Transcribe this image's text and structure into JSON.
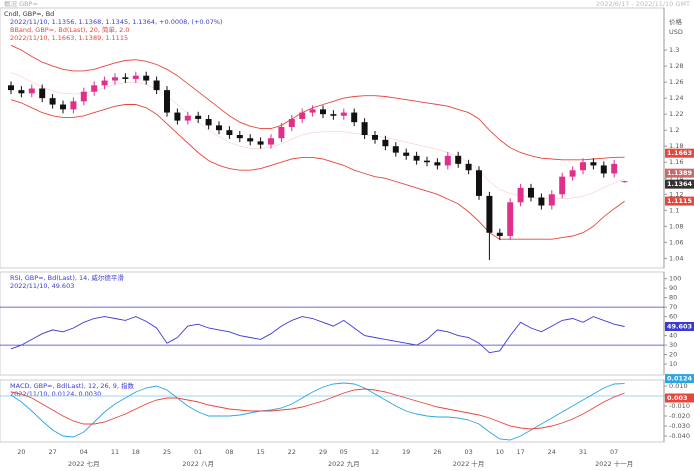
{
  "header": {
    "title_left": "概况 GBP=",
    "range_right": "2022/6/17 - 2022/11/10 GMT"
  },
  "chart_data": [
    {
      "type": "candlestick",
      "name": "Cndl, GBP=, Bd",
      "readout": "2022/11/10, 1.1356, 1.1368, 1.1345, 1.1364, +0.0008, (+0.07%)",
      "axis_title": "价格",
      "currency": "USD",
      "categories": [
        null,
        "20",
        null,
        null,
        "27",
        null,
        null,
        "04",
        null,
        null,
        "11",
        null,
        "18",
        null,
        null,
        "25",
        null,
        null,
        "01",
        null,
        null,
        "08",
        null,
        null,
        "15",
        null,
        null,
        "22",
        null,
        null,
        "29",
        null,
        "05",
        null,
        null,
        "12",
        null,
        null,
        "19",
        null,
        null,
        "26",
        null,
        null,
        "03",
        null,
        null,
        "10",
        null,
        "17",
        null,
        null,
        "24",
        null,
        null,
        "31",
        null,
        null,
        "07",
        null
      ],
      "month_labels": [
        null,
        null,
        null,
        null,
        null,
        null,
        null,
        "2022 七月",
        null,
        null,
        null,
        null,
        null,
        null,
        null,
        null,
        null,
        null,
        "2022 八月",
        null,
        null,
        null,
        null,
        null,
        null,
        null,
        null,
        null,
        null,
        null,
        null,
        null,
        "2022 九月",
        null,
        null,
        null,
        null,
        null,
        null,
        null,
        null,
        null,
        null,
        null,
        "2022 十月",
        null,
        null,
        null,
        null,
        null,
        null,
        null,
        null,
        null,
        null,
        null,
        null,
        null,
        "2022 十一月",
        null
      ],
      "open": [
        1.256,
        1.25,
        1.246,
        1.252,
        1.24,
        1.232,
        1.226,
        1.236,
        1.248,
        1.256,
        1.262,
        1.266,
        1.264,
        1.268,
        1.262,
        1.25,
        1.222,
        1.212,
        1.218,
        1.214,
        1.206,
        1.2,
        1.194,
        1.19,
        1.186,
        1.182,
        1.19,
        1.204,
        1.214,
        1.222,
        1.226,
        1.22,
        1.218,
        1.222,
        1.21,
        1.194,
        1.188,
        1.18,
        1.172,
        1.168,
        1.162,
        1.16,
        1.156,
        1.168,
        1.158,
        1.15,
        1.118,
        1.072,
        1.068,
        1.11,
        1.128,
        1.116,
        1.106,
        1.12,
        1.142,
        1.15,
        1.16,
        1.156,
        1.146,
        1.1356
      ],
      "high": [
        1.261,
        1.255,
        1.257,
        1.257,
        1.245,
        1.237,
        1.241,
        1.253,
        1.261,
        1.267,
        1.271,
        1.271,
        1.273,
        1.273,
        1.267,
        1.255,
        1.227,
        1.223,
        1.223,
        1.219,
        1.211,
        1.205,
        1.199,
        1.195,
        1.191,
        1.195,
        1.209,
        1.219,
        1.227,
        1.231,
        1.231,
        1.225,
        1.227,
        1.227,
        1.215,
        1.199,
        1.193,
        1.185,
        1.177,
        1.173,
        1.167,
        1.165,
        1.173,
        1.173,
        1.163,
        1.155,
        1.123,
        1.077,
        1.115,
        1.133,
        1.133,
        1.121,
        1.125,
        1.147,
        1.155,
        1.165,
        1.165,
        1.161,
        1.163,
        1.1368
      ],
      "low": [
        1.245,
        1.241,
        1.241,
        1.235,
        1.227,
        1.221,
        1.221,
        1.231,
        1.243,
        1.251,
        1.257,
        1.259,
        1.259,
        1.257,
        1.245,
        1.217,
        1.207,
        1.207,
        1.209,
        1.201,
        1.195,
        1.189,
        1.185,
        1.181,
        1.177,
        1.177,
        1.185,
        1.199,
        1.209,
        1.217,
        1.215,
        1.213,
        1.213,
        1.205,
        1.189,
        1.183,
        1.175,
        1.167,
        1.163,
        1.157,
        1.155,
        1.151,
        1.151,
        1.153,
        1.145,
        1.113,
        1.038,
        1.063,
        1.063,
        1.105,
        1.111,
        1.101,
        1.101,
        1.115,
        1.137,
        1.145,
        1.151,
        1.141,
        1.141,
        1.1345
      ],
      "close": [
        1.25,
        1.246,
        1.252,
        1.24,
        1.232,
        1.226,
        1.236,
        1.248,
        1.256,
        1.262,
        1.266,
        1.264,
        1.268,
        1.262,
        1.25,
        1.222,
        1.212,
        1.218,
        1.214,
        1.206,
        1.2,
        1.194,
        1.19,
        1.186,
        1.182,
        1.19,
        1.204,
        1.214,
        1.222,
        1.226,
        1.22,
        1.218,
        1.222,
        1.21,
        1.194,
        1.188,
        1.18,
        1.172,
        1.168,
        1.162,
        1.16,
        1.156,
        1.168,
        1.158,
        1.15,
        1.118,
        1.072,
        1.068,
        1.11,
        1.128,
        1.116,
        1.106,
        1.12,
        1.142,
        1.15,
        1.16,
        1.156,
        1.146,
        1.158,
        1.1364
      ],
      "up_color": "#e0308c",
      "down_color": "#111111",
      "last_color": "#333333",
      "overlay": {
        "name": "BBand, GBP=, Bd(Last), 20, 简单, 2.0",
        "readout": "2022/11/10, 1.1663, 1.1389, 1.1115",
        "color": "#e8453c",
        "upper": [
          1.306,
          1.3,
          1.292,
          1.285,
          1.28,
          1.276,
          1.274,
          1.274,
          1.276,
          1.28,
          1.284,
          1.287,
          1.288,
          1.286,
          1.282,
          1.276,
          1.268,
          1.258,
          1.248,
          1.238,
          1.228,
          1.218,
          1.21,
          1.205,
          1.202,
          1.202,
          1.206,
          1.214,
          1.222,
          1.228,
          1.232,
          1.236,
          1.24,
          1.242,
          1.243,
          1.243,
          1.242,
          1.24,
          1.238,
          1.236,
          1.234,
          1.232,
          1.23,
          1.226,
          1.222,
          1.214,
          1.2,
          1.188,
          1.178,
          1.172,
          1.168,
          1.165,
          1.164,
          1.163,
          1.163,
          1.163,
          1.164,
          1.165,
          1.166,
          1.1663
        ],
        "middle": [
          1.272,
          1.267,
          1.26,
          1.2535,
          1.249,
          1.246,
          1.245,
          1.246,
          1.249,
          1.253,
          1.257,
          1.2595,
          1.26,
          1.257,
          1.251,
          1.242,
          1.232,
          1.221,
          1.21,
          1.2,
          1.192,
          1.185,
          1.18,
          1.1775,
          1.177,
          1.179,
          1.183,
          1.189,
          1.194,
          1.197,
          1.198,
          1.198,
          1.198,
          1.196,
          1.1945,
          1.1925,
          1.191,
          1.188,
          1.185,
          1.182,
          1.179,
          1.176,
          1.172,
          1.167,
          1.16,
          1.15,
          1.136,
          1.126,
          1.121,
          1.118,
          1.116,
          1.1145,
          1.114,
          1.1145,
          1.1155,
          1.1175,
          1.122,
          1.1285,
          1.134,
          1.1389
        ],
        "lower": [
          1.238,
          1.234,
          1.228,
          1.222,
          1.218,
          1.216,
          1.216,
          1.218,
          1.222,
          1.226,
          1.23,
          1.232,
          1.232,
          1.228,
          1.22,
          1.208,
          1.196,
          1.184,
          1.172,
          1.162,
          1.156,
          1.152,
          1.15,
          1.15,
          1.152,
          1.156,
          1.16,
          1.164,
          1.166,
          1.166,
          1.164,
          1.16,
          1.156,
          1.15,
          1.146,
          1.142,
          1.14,
          1.136,
          1.132,
          1.128,
          1.124,
          1.12,
          1.114,
          1.108,
          1.098,
          1.086,
          1.072,
          1.064,
          1.064,
          1.064,
          1.064,
          1.064,
          1.064,
          1.066,
          1.068,
          1.072,
          1.08,
          1.092,
          1.102,
          1.1115
        ]
      },
      "ylim": [
        1.028,
        1.3525
      ],
      "yticks": [
        1.04,
        1.06,
        1.08,
        1.1,
        1.12,
        1.14,
        1.16,
        1.18,
        1.2,
        1.22,
        1.24,
        1.26,
        1.28,
        1.3
      ]
    },
    {
      "type": "line",
      "name": "RSI, GBP=, Bd(Last), 14, 威尔德平滑",
      "readout": "2022/11/10, 49.603",
      "color": "#3a3ad6",
      "values": [
        26,
        30,
        36,
        42,
        46,
        44,
        48,
        54,
        58,
        60,
        58,
        56,
        60,
        55,
        48,
        32,
        38,
        50,
        52,
        48,
        46,
        44,
        40,
        38,
        36,
        42,
        50,
        56,
        60,
        58,
        54,
        50,
        56,
        48,
        40,
        38,
        36,
        34,
        32,
        30,
        36,
        46,
        44,
        40,
        38,
        32,
        22,
        24,
        40,
        54,
        48,
        44,
        50,
        56,
        58,
        54,
        60,
        56,
        52,
        49.603
      ],
      "reference_lines": [
        30,
        70
      ],
      "ylim": [
        -1.5,
        107
      ],
      "yticks": [
        10,
        20,
        30,
        40,
        50,
        60,
        70,
        80,
        90,
        100
      ]
    },
    {
      "type": "line",
      "name": "MACD, GBP=, Bd(Last), 12, 26, 9, 指数",
      "readout": "2022/11/10, 0.0124, 0.0030",
      "series": [
        {
          "color": "#2aa6e6",
          "values": [
            0.001,
            -0.006,
            -0.015,
            -0.025,
            -0.034,
            -0.04,
            -0.041,
            -0.036,
            -0.026,
            -0.016,
            -0.008,
            -0.002,
            0.004,
            0.008,
            0.01,
            0.006,
            -0.002,
            -0.01,
            -0.016,
            -0.02,
            -0.02,
            -0.02,
            -0.019,
            -0.017,
            -0.015,
            -0.014,
            -0.012,
            -0.008,
            -0.002,
            0.004,
            0.009,
            0.012,
            0.013,
            0.012,
            0.008,
            0.002,
            -0.004,
            -0.01,
            -0.015,
            -0.018,
            -0.02,
            -0.021,
            -0.021,
            -0.022,
            -0.024,
            -0.028,
            -0.036,
            -0.043,
            -0.044,
            -0.04,
            -0.034,
            -0.028,
            -0.022,
            -0.016,
            -0.01,
            -0.004,
            0.002,
            0.008,
            0.012,
            0.0124
          ]
        },
        {
          "color": "#e8453c",
          "values": [
            0.004,
            0.002,
            -0.002,
            -0.008,
            -0.014,
            -0.02,
            -0.025,
            -0.028,
            -0.028,
            -0.026,
            -0.022,
            -0.018,
            -0.013,
            -0.008,
            -0.004,
            -0.002,
            -0.002,
            -0.004,
            -0.006,
            -0.009,
            -0.011,
            -0.013,
            -0.014,
            -0.015,
            -0.015,
            -0.015,
            -0.014,
            -0.013,
            -0.011,
            -0.008,
            -0.005,
            -0.001,
            0.003,
            0.006,
            0.007,
            0.006,
            0.004,
            0.001,
            -0.002,
            -0.005,
            -0.008,
            -0.011,
            -0.013,
            -0.015,
            -0.017,
            -0.019,
            -0.022,
            -0.026,
            -0.03,
            -0.032,
            -0.033,
            -0.032,
            -0.03,
            -0.027,
            -0.023,
            -0.018,
            -0.012,
            -0.006,
            -0.001,
            0.003
          ]
        }
      ],
      "reference_lines": [
        0
      ],
      "ylim": [
        -0.046,
        0.016
      ],
      "yticks": [
        {
          "value": -0.04,
          "label": "-0.040"
        },
        {
          "value": -0.03,
          "label": "-0.030"
        },
        {
          "value": -0.02,
          "label": "-0.020"
        },
        {
          "value": -0.01,
          "label": "-0.010"
        },
        {
          "value": 0,
          "label": "0.000"
        },
        {
          "value": 0.01,
          "label": "0.010"
        }
      ]
    }
  ]
}
